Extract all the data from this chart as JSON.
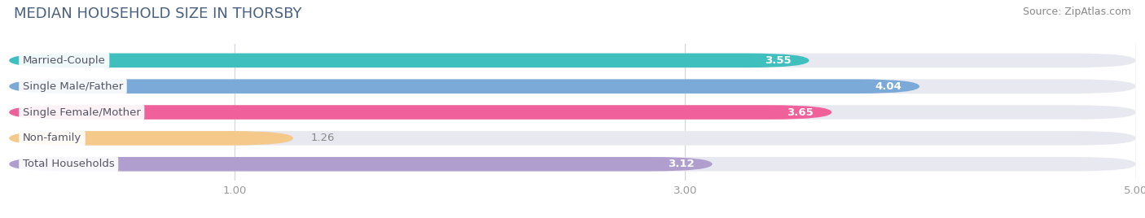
{
  "title": "MEDIAN HOUSEHOLD SIZE IN THORSBY",
  "source": "Source: ZipAtlas.com",
  "categories": [
    "Married-Couple",
    "Single Male/Father",
    "Single Female/Mother",
    "Non-family",
    "Total Households"
  ],
  "values": [
    3.55,
    4.04,
    3.65,
    1.26,
    3.12
  ],
  "bar_colors": [
    "#40bfbf",
    "#7baad8",
    "#f0609a",
    "#f5c98a",
    "#b09ecf"
  ],
  "bar_bg_color": "#e8e8f0",
  "xlim": [
    0,
    5.0
  ],
  "xticks": [
    1.0,
    3.0,
    5.0
  ],
  "xtick_labels": [
    "1.00",
    "3.00",
    "5.00"
  ],
  "label_fontsize": 9.5,
  "value_fontsize": 9.5,
  "title_fontsize": 13,
  "source_fontsize": 9,
  "bar_height": 0.55,
  "background_color": "#ffffff",
  "title_color": "#4a6080",
  "source_color": "#888888",
  "tick_color": "#999999",
  "grid_color": "#d8d8e0",
  "label_text_color": "#555566",
  "value_color_inside": "#ffffff",
  "value_color_outside": "#888888"
}
